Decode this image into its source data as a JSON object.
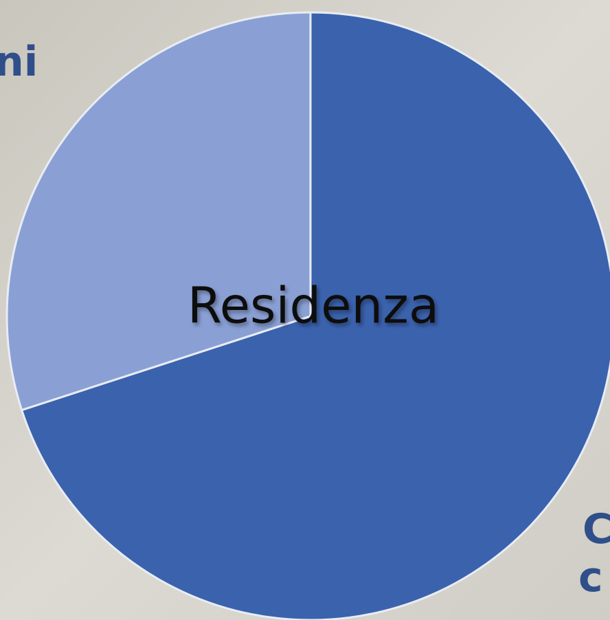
{
  "chart_data": {
    "type": "pie",
    "label": "Residenza",
    "values": [
      70,
      30
    ],
    "colors": [
      "#3b62ad",
      "#8aa0d4"
    ],
    "background_text": [
      "ni",
      "C",
      "c"
    ]
  }
}
